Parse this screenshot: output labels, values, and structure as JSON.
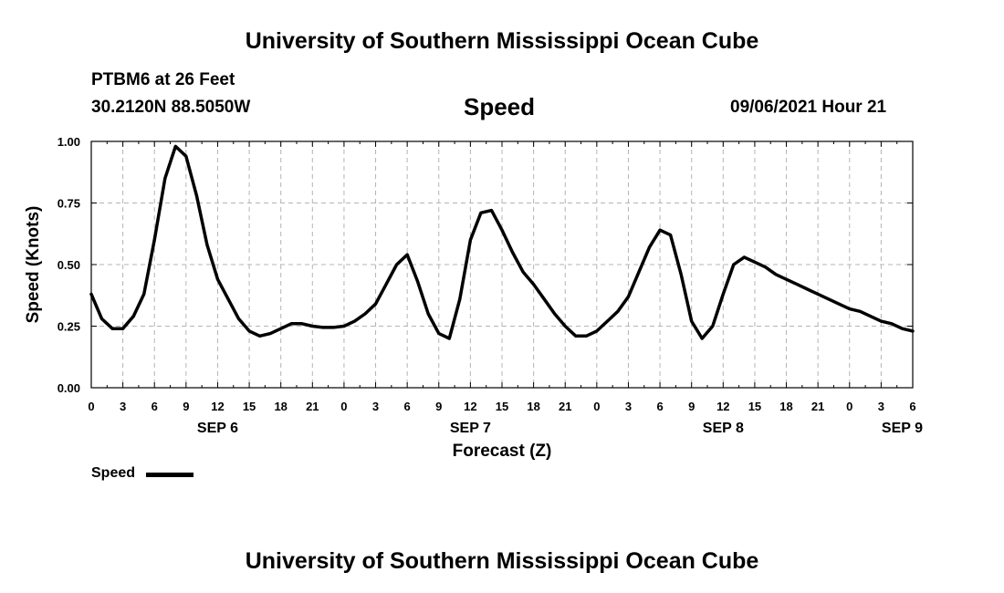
{
  "header": {
    "title": "University of Southern Mississippi Ocean Cube",
    "station": "PTBM6 at 26 Feet",
    "coords": "30.2120N  88.5050W",
    "heading": "Speed",
    "datetime": "09/06/2021 Hour 21"
  },
  "footer": {
    "title": "University of Southern Mississippi Ocean Cube"
  },
  "legend": {
    "label": "Speed"
  },
  "chart_data": {
    "type": "line",
    "title": "Speed",
    "xlabel": "Forecast (Z)",
    "ylabel": "Speed (Knots)",
    "xlim": [
      0,
      78
    ],
    "ylim": [
      0,
      1
    ],
    "grid": true,
    "legend_position": "bottom-left",
    "y_ticks": [
      "0.00",
      "0.25",
      "0.50",
      "0.75",
      "1.00"
    ],
    "x_ticks": [
      "0",
      "3",
      "6",
      "9",
      "12",
      "15",
      "18",
      "21",
      "0",
      "3",
      "6",
      "9",
      "12",
      "15",
      "18",
      "21",
      "0",
      "3",
      "6",
      "9",
      "12",
      "15",
      "18",
      "21",
      "0",
      "3",
      "6"
    ],
    "date_labels": [
      {
        "label": "SEP 6",
        "at": 12
      },
      {
        "label": "SEP 7",
        "at": 36
      },
      {
        "label": "SEP 8",
        "at": 60
      },
      {
        "label": "SEP 9",
        "at": 77
      }
    ],
    "series": [
      {
        "name": "Speed",
        "color": "#000000",
        "x": [
          0,
          1,
          2,
          3,
          4,
          5,
          6,
          7,
          8,
          9,
          10,
          11,
          12,
          13,
          14,
          15,
          16,
          17,
          18,
          19,
          20,
          21,
          22,
          23,
          24,
          25,
          26,
          27,
          28,
          29,
          30,
          31,
          32,
          33,
          34,
          35,
          36,
          37,
          38,
          39,
          40,
          41,
          42,
          43,
          44,
          45,
          46,
          47,
          48,
          49,
          50,
          51,
          52,
          53,
          54,
          55,
          56,
          57,
          58,
          59,
          60,
          61,
          62,
          63,
          64,
          65,
          66,
          67,
          68,
          69,
          70,
          71,
          72,
          73,
          74,
          75,
          76,
          77,
          78
        ],
        "values": [
          0.38,
          0.28,
          0.24,
          0.24,
          0.29,
          0.38,
          0.6,
          0.85,
          0.98,
          0.94,
          0.78,
          0.58,
          0.44,
          0.36,
          0.28,
          0.23,
          0.21,
          0.22,
          0.24,
          0.26,
          0.26,
          0.25,
          0.245,
          0.245,
          0.25,
          0.27,
          0.3,
          0.34,
          0.42,
          0.5,
          0.54,
          0.43,
          0.3,
          0.22,
          0.2,
          0.36,
          0.6,
          0.71,
          0.72,
          0.64,
          0.55,
          0.47,
          0.42,
          0.36,
          0.3,
          0.25,
          0.21,
          0.21,
          0.23,
          0.27,
          0.31,
          0.37,
          0.47,
          0.57,
          0.64,
          0.62,
          0.46,
          0.27,
          0.2,
          0.25,
          0.38,
          0.5,
          0.53,
          0.51,
          0.49,
          0.46,
          0.44,
          0.42,
          0.4,
          0.38,
          0.36,
          0.34,
          0.32,
          0.31,
          0.29,
          0.27,
          0.26,
          0.24,
          0.23
        ]
      }
    ]
  }
}
